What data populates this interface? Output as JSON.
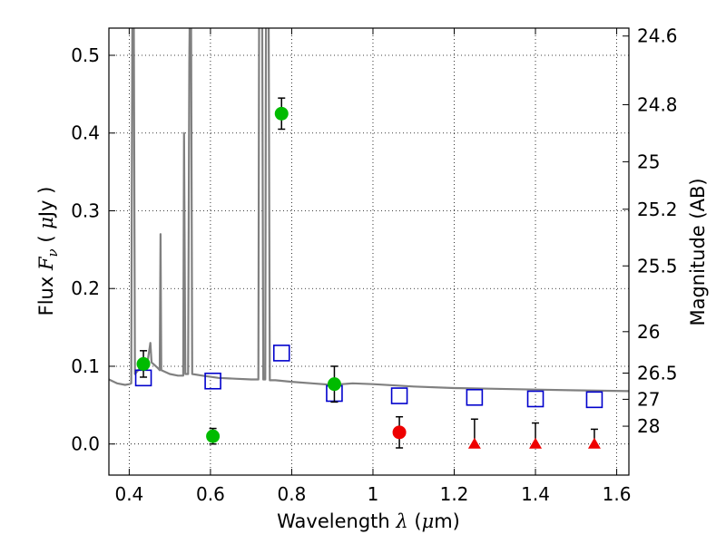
{
  "chart_data": {
    "type": "scatter",
    "title": "",
    "xlabel": "Wavelength  λ (μm)",
    "xlabel_parts": {
      "main": "Wavelength ",
      "symbol": "λ",
      "open": " (",
      "mu": "μ",
      "unit": "m)"
    },
    "ylabel": "Flux  Fν  ( μJy )",
    "ylabel_parts": {
      "main": "Flux  ",
      "symbol": "F",
      "sub": "ν",
      "open": "  ( ",
      "mu": "μ",
      "unit": "Jy )"
    },
    "y2label": "Magnitude (AB)",
    "xlim": [
      0.35,
      1.63
    ],
    "ylim": [
      -0.04,
      0.535
    ],
    "grid": true,
    "legend": "none",
    "x_ticks": [
      0.4,
      0.6,
      0.8,
      1.0,
      1.2,
      1.4,
      1.6
    ],
    "x_tick_labels": [
      "0.4",
      "0.6",
      "0.8",
      "1",
      "1.2",
      "1.4",
      "1.6"
    ],
    "y_ticks": [
      0.0,
      0.1,
      0.2,
      0.3,
      0.4,
      0.5
    ],
    "y_tick_labels": [
      "0.0",
      "0.1",
      "0.2",
      "0.3",
      "0.4",
      "0.5"
    ],
    "y2_ticks": [
      {
        "label": "24.6",
        "flux": 0.5248
      },
      {
        "label": "24.8",
        "flux": 0.4365
      },
      {
        "label": "25",
        "flux": 0.3631
      },
      {
        "label": "25.2",
        "flux": 0.302
      },
      {
        "label": "25.5",
        "flux": 0.2291
      },
      {
        "label": "26",
        "flux": 0.1445
      },
      {
        "label": "26.5",
        "flux": 0.0912
      },
      {
        "label": "27",
        "flux": 0.0575
      },
      {
        "label": "28",
        "flux": 0.0229
      }
    ],
    "series": [
      {
        "kind": "spectrum",
        "color": "#808080",
        "points": [
          [
            0.35,
            0.083
          ],
          [
            0.37,
            0.078
          ],
          [
            0.39,
            0.076
          ],
          [
            0.4,
            0.077
          ],
          [
            0.405,
            0.078
          ],
          [
            0.408,
            0.6
          ],
          [
            0.411,
            0.6
          ],
          [
            0.414,
            0.09
          ],
          [
            0.43,
            0.1
          ],
          [
            0.445,
            0.105
          ],
          [
            0.452,
            0.13
          ],
          [
            0.455,
            0.105
          ],
          [
            0.47,
            0.098
          ],
          [
            0.475,
            0.095
          ],
          [
            0.477,
            0.27
          ],
          [
            0.479,
            0.095
          ],
          [
            0.5,
            0.09
          ],
          [
            0.52,
            0.088
          ],
          [
            0.533,
            0.088
          ],
          [
            0.535,
            0.4
          ],
          [
            0.538,
            0.09
          ],
          [
            0.545,
            0.09
          ],
          [
            0.548,
            0.49
          ],
          [
            0.55,
            0.6
          ],
          [
            0.552,
            0.6
          ],
          [
            0.555,
            0.09
          ],
          [
            0.58,
            0.088
          ],
          [
            0.62,
            0.085
          ],
          [
            0.66,
            0.084
          ],
          [
            0.7,
            0.083
          ],
          [
            0.718,
            0.083
          ],
          [
            0.72,
            0.6
          ],
          [
            0.727,
            0.6
          ],
          [
            0.73,
            0.083
          ],
          [
            0.735,
            0.083
          ],
          [
            0.737,
            0.6
          ],
          [
            0.743,
            0.6
          ],
          [
            0.746,
            0.082
          ],
          [
            0.76,
            0.082
          ],
          [
            0.8,
            0.08
          ],
          [
            0.85,
            0.078
          ],
          [
            0.9,
            0.076
          ],
          [
            0.95,
            0.078
          ],
          [
            1.0,
            0.077
          ],
          [
            1.1,
            0.074
          ],
          [
            1.2,
            0.072
          ],
          [
            1.3,
            0.071
          ],
          [
            1.4,
            0.07
          ],
          [
            1.5,
            0.069
          ],
          [
            1.63,
            0.068
          ]
        ]
      },
      {
        "kind": "model-photometry",
        "color": "#0000cc",
        "marker": "square",
        "points": [
          [
            0.435,
            0.085
          ],
          [
            0.606,
            0.081
          ],
          [
            0.775,
            0.117
          ],
          [
            0.905,
            0.065
          ],
          [
            1.065,
            0.062
          ],
          [
            1.25,
            0.06
          ],
          [
            1.4,
            0.058
          ],
          [
            1.545,
            0.057
          ]
        ]
      },
      {
        "kind": "detections",
        "color": "#00bb00",
        "marker": "circle",
        "points": [
          [
            0.435,
            0.103,
            0.017
          ],
          [
            0.606,
            0.01,
            0.01
          ],
          [
            0.775,
            0.425,
            0.02
          ],
          [
            0.905,
            0.077,
            0.023
          ]
        ]
      },
      {
        "kind": "detection-nir",
        "color": "#ee0000",
        "marker": "circle",
        "points": [
          [
            1.065,
            0.015,
            0.02
          ]
        ]
      },
      {
        "kind": "upper-limits",
        "color": "#ee0000",
        "marker": "triangle",
        "points": [
          [
            1.25,
            0.0,
            0.032
          ],
          [
            1.4,
            0.0,
            0.027
          ],
          [
            1.545,
            0.0,
            0.019
          ]
        ]
      }
    ]
  }
}
